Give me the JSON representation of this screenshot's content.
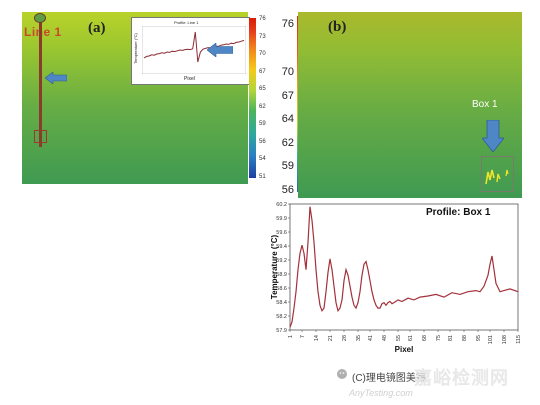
{
  "panel_a": {
    "label": "(a)",
    "line_label": "Line 1",
    "inset": {
      "title": "Profile: Line 1",
      "xlabel": "Pixel",
      "ylabel": "Temperature (°C)",
      "profile": [
        0.3,
        0.34,
        0.35,
        0.38,
        0.37,
        0.4,
        0.41,
        0.43,
        0.42,
        0.45,
        0.44,
        0.47,
        0.46,
        0.48,
        0.5,
        0.49,
        0.51,
        0.52,
        0.51,
        0.53,
        0.95,
        0.2,
        0.45,
        0.52,
        0.54,
        0.56,
        0.55,
        0.58,
        0.6,
        0.59,
        0.62,
        0.63,
        0.65,
        0.64,
        0.67,
        0.66,
        0.69,
        0.7,
        0.72,
        0.74
      ]
    },
    "colorbar_ticks": [
      "76",
      "73",
      "70",
      "67",
      "65",
      "62",
      "59",
      "56",
      "54",
      "51"
    ],
    "colorbar_colors": [
      "#d81e05",
      "#f5c817",
      "#4db55c",
      "#1c3fa0"
    ],
    "arrow_color": "#4f86c6"
  },
  "panel_b": {
    "label": "(b)",
    "roi_label": "Box 1",
    "colorbar_ticks": [
      "76",
      "70",
      "67",
      "64",
      "62",
      "59",
      "56"
    ],
    "arrow_color": "#4f86c6"
  },
  "chart_data": {
    "type": "line",
    "title": "Profile: Box 1",
    "xlabel": "Pixel",
    "ylabel": "Temperature (°C)",
    "ylim": [
      57.9,
      60.2
    ],
    "y_ticks": [
      "60.2",
      "59.9",
      "59.6",
      "59.4",
      "59.2",
      "58.9",
      "58.6",
      "58.4",
      "58.2",
      "57.9"
    ],
    "x_ticks": [
      "1",
      "7",
      "14",
      "21",
      "28",
      "35",
      "41",
      "48",
      "55",
      "61",
      "68",
      "75",
      "81",
      "88",
      "95",
      "101",
      "108",
      "115"
    ],
    "series": [
      {
        "x": [
          1,
          2,
          3,
          4,
          5,
          6,
          7,
          8,
          9,
          10,
          11,
          12,
          13,
          14,
          15,
          16,
          17,
          18,
          19,
          20,
          21,
          22,
          23,
          24,
          25,
          26,
          27,
          28,
          29,
          30,
          31,
          32,
          33,
          34,
          35,
          36,
          37,
          38,
          39,
          40,
          41,
          42,
          43,
          44,
          45,
          46,
          47,
          48,
          49,
          50,
          51,
          52,
          53,
          55,
          57,
          60,
          63,
          66,
          70,
          74,
          78,
          82,
          86,
          90,
          94,
          96,
          98,
          100,
          101,
          102,
          103,
          104,
          106,
          108,
          111,
          115
        ],
        "values": [
          57.95,
          58.05,
          58.3,
          58.6,
          59.0,
          59.3,
          59.45,
          59.3,
          59.0,
          59.5,
          60.15,
          59.9,
          59.5,
          59.0,
          58.6,
          58.35,
          58.25,
          58.3,
          58.6,
          58.95,
          59.2,
          59.0,
          58.7,
          58.4,
          58.25,
          58.3,
          58.45,
          58.8,
          59.0,
          58.9,
          58.7,
          58.5,
          58.35,
          58.3,
          58.4,
          58.6,
          58.9,
          59.1,
          59.15,
          59.0,
          58.8,
          58.6,
          58.45,
          58.35,
          58.3,
          58.3,
          58.38,
          58.4,
          58.35,
          58.4,
          58.42,
          58.38,
          58.4,
          58.45,
          58.42,
          58.48,
          58.45,
          58.5,
          58.52,
          58.55,
          58.5,
          58.58,
          58.55,
          58.6,
          58.62,
          58.6,
          58.7,
          58.9,
          59.1,
          59.25,
          59.0,
          58.75,
          58.6,
          58.62,
          58.65,
          58.6
        ],
        "color": "#a3303a"
      }
    ]
  },
  "watermark": {
    "main": "嘉峪检测网",
    "channel": "(C)理电镜图美镜",
    "site": "AnyTesting.com"
  }
}
